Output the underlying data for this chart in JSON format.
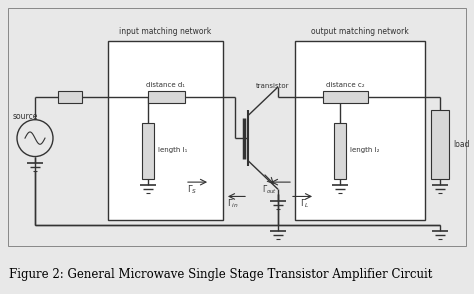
{
  "fig_bg": "#e8e8e8",
  "diagram_bg": "#e8e8e8",
  "network_box_bg": "#ffffff",
  "line_color": "#333333",
  "component_fill": "#d8d8d8",
  "caption": "Figure 2: General Microwave Single Stage Transistor Amplifier Circuit",
  "caption_fontsize": 8.5,
  "input_network_label": "input matching network",
  "output_network_label": "output matching network",
  "source_label": "source",
  "transistor_label": "transistor",
  "load_label": "load",
  "distance1_label": "distance d₁",
  "distance2_label": "distance c₂",
  "length1_label": "length l₁",
  "length2_label": "length l₂"
}
